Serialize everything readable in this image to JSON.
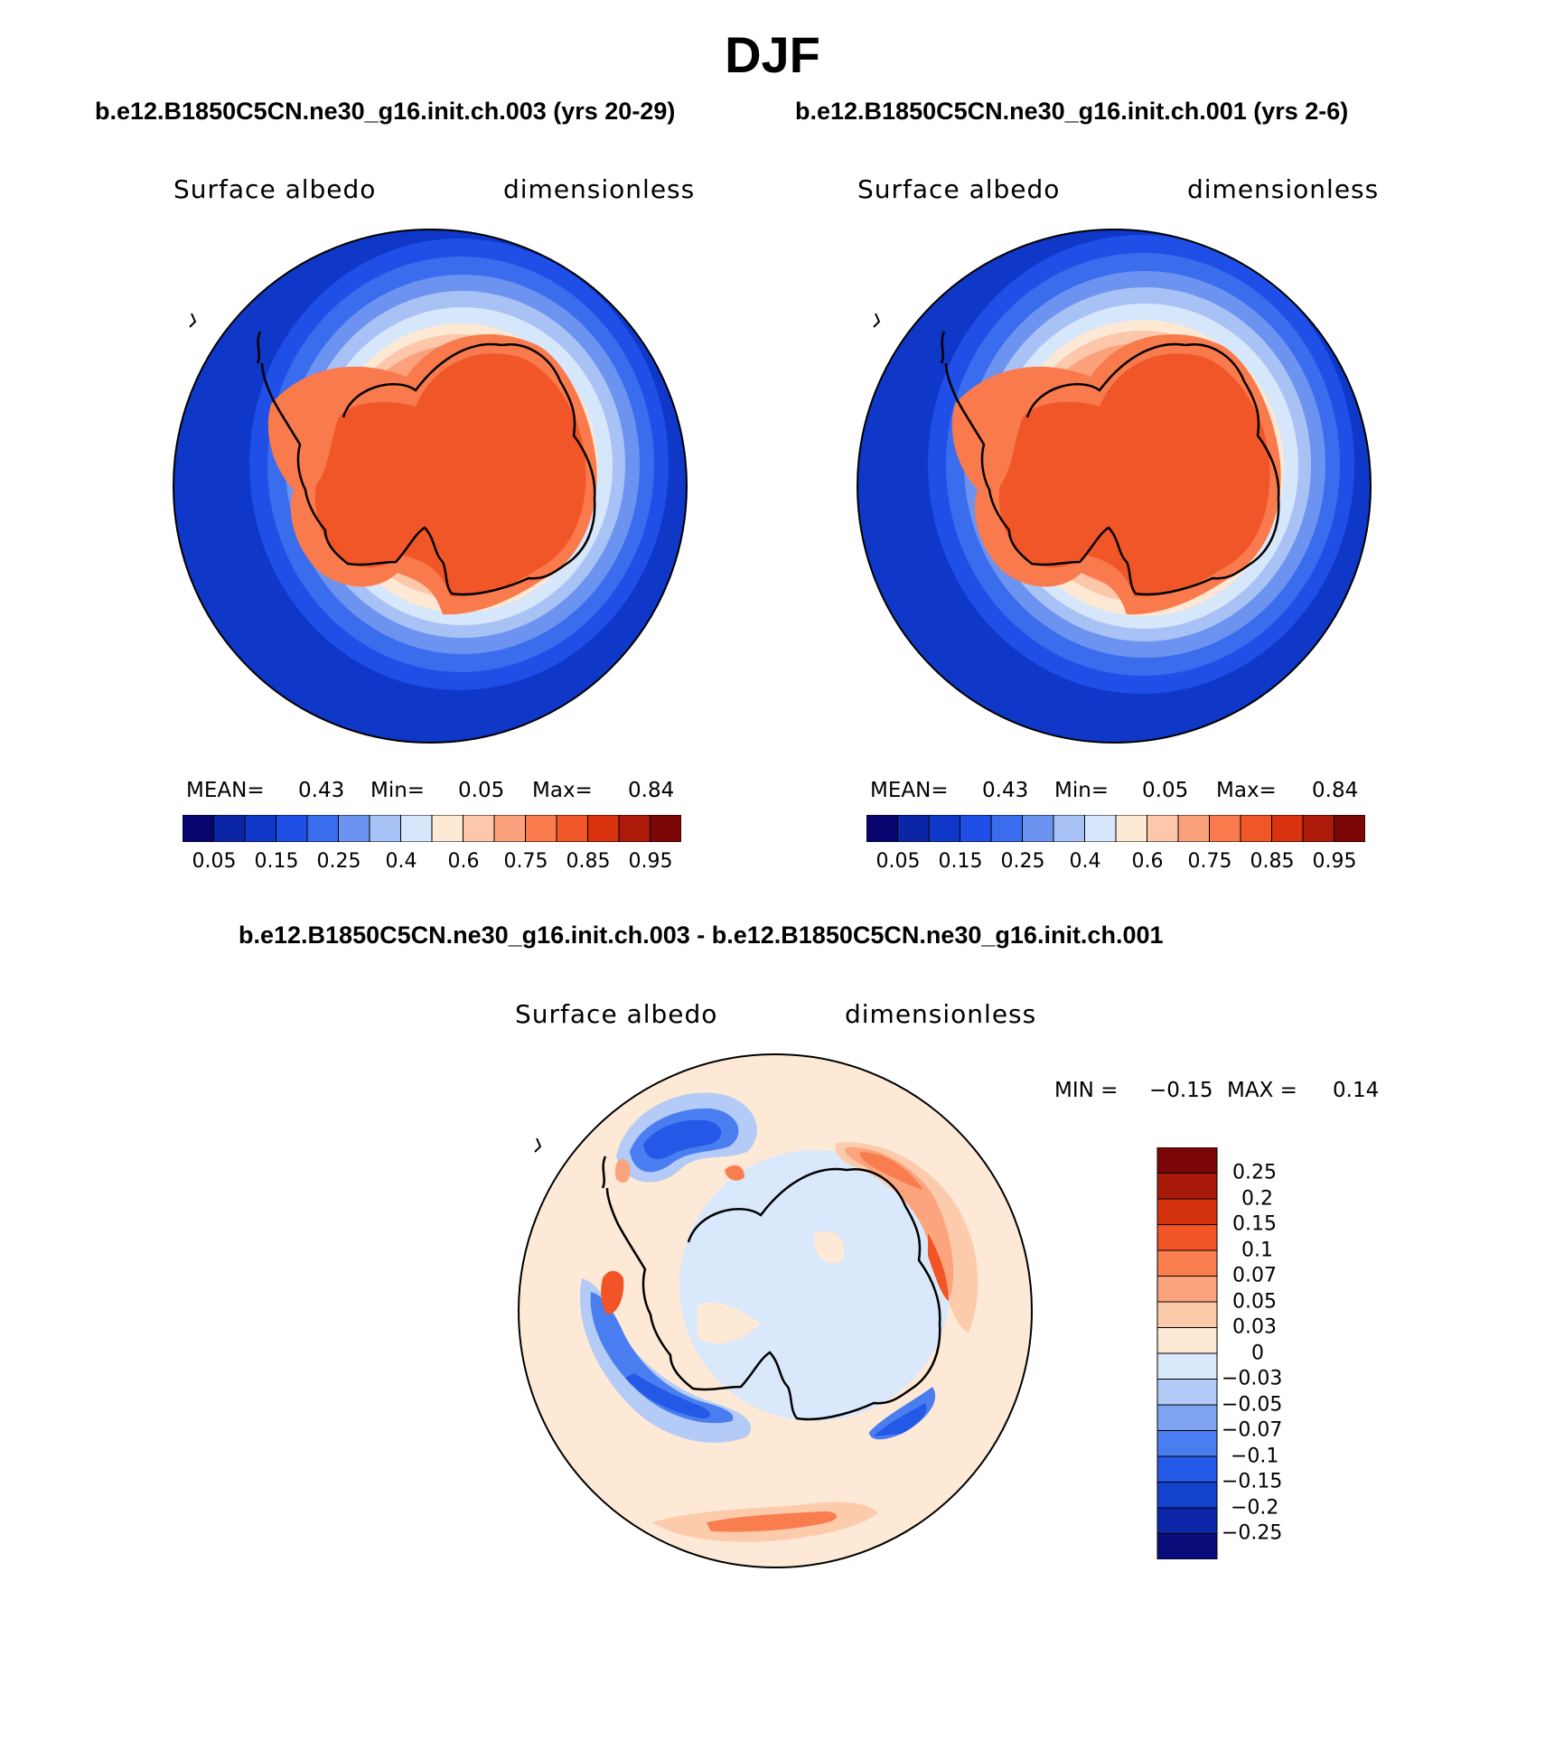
{
  "title": "DJF",
  "panels": [
    {
      "case_title": "b.e12.B1850C5CN.ne30_g16.init.ch.003 (yrs 20-29)",
      "variable": "Surface albedo",
      "units": "dimensionless",
      "mean_label": "MEAN=",
      "mean": "0.43",
      "min_label": "Min=",
      "min": "0.05",
      "max_label": "Max=",
      "max": "0.84"
    },
    {
      "case_title": "b.e12.B1850C5CN.ne30_g16.init.ch.001 (yrs 2-6)",
      "variable": "Surface albedo",
      "units": "dimensionless",
      "mean_label": "MEAN=",
      "mean": "0.43",
      "min_label": "Min=",
      "min": "0.05",
      "max_label": "Max=",
      "max": "0.84"
    }
  ],
  "diff": {
    "title": "b.e12.B1850C5CN.ne30_g16.init.ch.003 - b.e12.B1850C5CN.ne30_g16.init.ch.001",
    "variable": "Surface albedo",
    "units": "dimensionless",
    "min_label": "MIN =",
    "min": "−0.15",
    "max_label": "MAX =",
    "max": "0.14"
  },
  "chart_data": [
    {
      "type": "heatmap",
      "projection": "south polar stereographic",
      "legend_placement": "bottom",
      "colorbar": {
        "colors": [
          "#08066e",
          "#0a26a6",
          "#0f37c8",
          "#1f4fe6",
          "#3a6cee",
          "#6d93f0",
          "#a9c2f5",
          "#d6e6fb",
          "#fde8d4",
          "#fcc7aa",
          "#fba27c",
          "#f97a4c",
          "#f15628",
          "#d8320e",
          "#ae1a0a",
          "#7b0606"
        ],
        "tick_labels": [
          "0.05",
          "0.15",
          "0.25",
          "0.4",
          "0.6",
          "0.75",
          "0.85",
          "0.95"
        ],
        "levels": [
          0.05,
          0.1,
          0.15,
          0.2,
          0.25,
          0.3,
          0.4,
          0.5,
          0.6,
          0.7,
          0.75,
          0.8,
          0.85,
          0.9,
          0.95
        ]
      }
    },
    {
      "type": "heatmap",
      "projection": "south polar stereographic",
      "legend_placement": "right",
      "colorbar": {
        "colors": [
          "#0a0c7a",
          "#0b26a8",
          "#1342cc",
          "#2459e8",
          "#4a7ef0",
          "#7fa4f2",
          "#b3cbf6",
          "#d9e8fa",
          "#fde9d6",
          "#fccbac",
          "#fba47e",
          "#f97d4f",
          "#f15427",
          "#d4330e",
          "#a9190a",
          "#7b0607"
        ],
        "tick_labels": [
          "0.25",
          "0.2",
          "0.15",
          "0.1",
          "0.07",
          "0.05",
          "0.03",
          "0",
          "−0.03",
          "−0.05",
          "−0.07",
          "−0.1",
          "−0.15",
          "−0.2",
          "−0.25"
        ]
      }
    }
  ]
}
